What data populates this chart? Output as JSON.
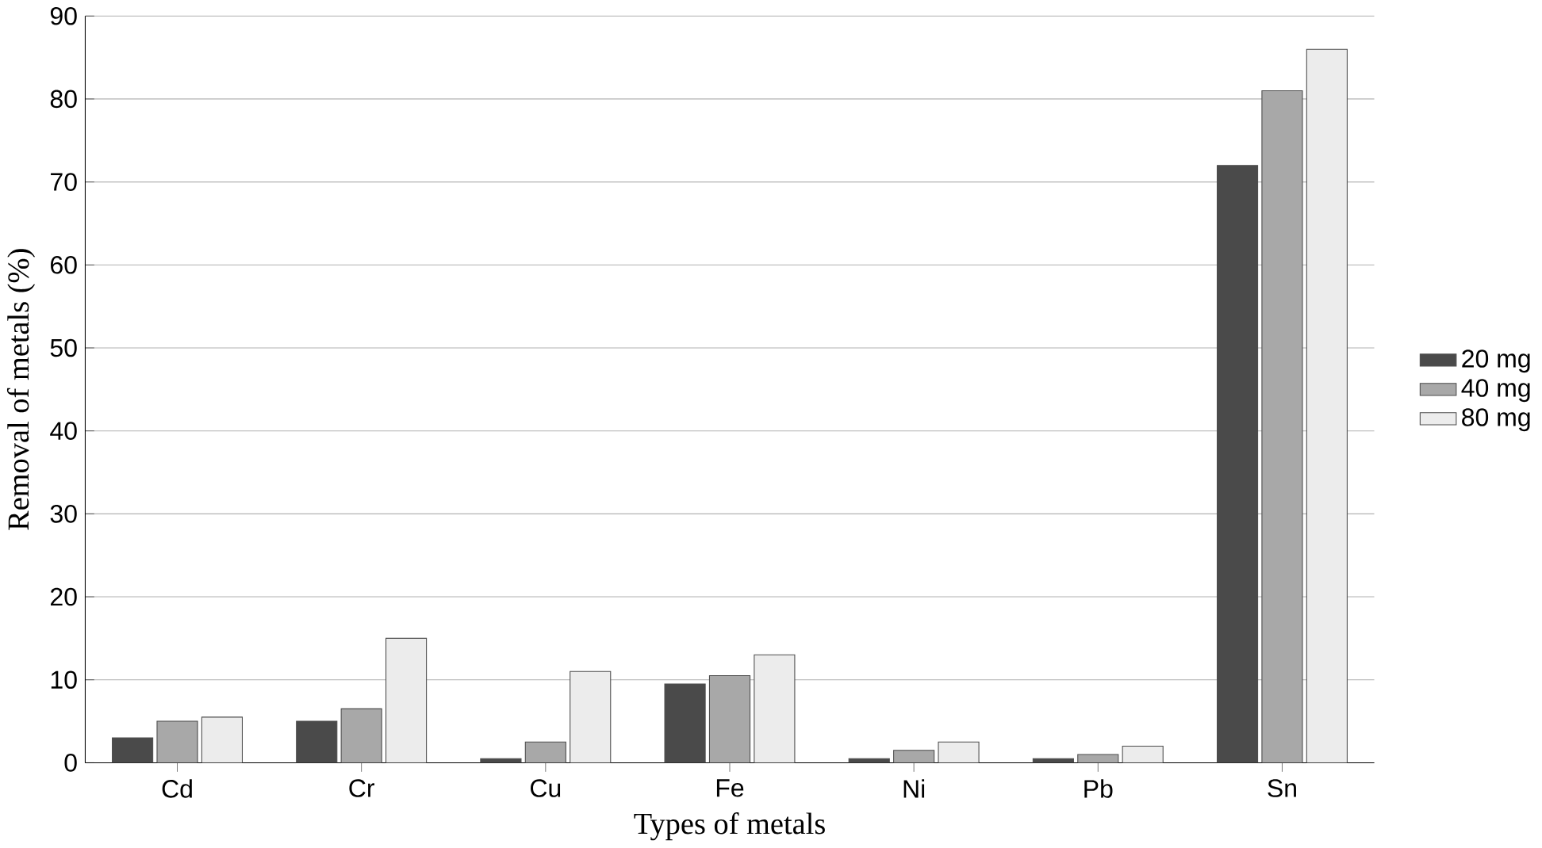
{
  "chart_data": {
    "type": "bar",
    "xlabel": "Types of metals",
    "ylabel": "Removal of metals (%)",
    "categories": [
      "Cd",
      "Cr",
      "Cu",
      "Fe",
      "Ni",
      "Pb",
      "Sn"
    ],
    "series": [
      {
        "name": "20 mg",
        "color": "#4a4a4a",
        "values": [
          3,
          5,
          0.5,
          9.5,
          0.5,
          0.5,
          72
        ]
      },
      {
        "name": "40 mg",
        "color": "#a8a8a8",
        "values": [
          5,
          6.5,
          2.5,
          10.5,
          1.5,
          1,
          81
        ]
      },
      {
        "name": "80 mg",
        "color": "#ececec",
        "values": [
          5.5,
          15,
          11,
          13,
          2.5,
          2,
          86
        ]
      }
    ],
    "ylim": [
      0,
      90
    ],
    "yticks": [
      0,
      10,
      20,
      30,
      40,
      50,
      60,
      70,
      80,
      90
    ],
    "grid": "y",
    "legend": "right"
  }
}
